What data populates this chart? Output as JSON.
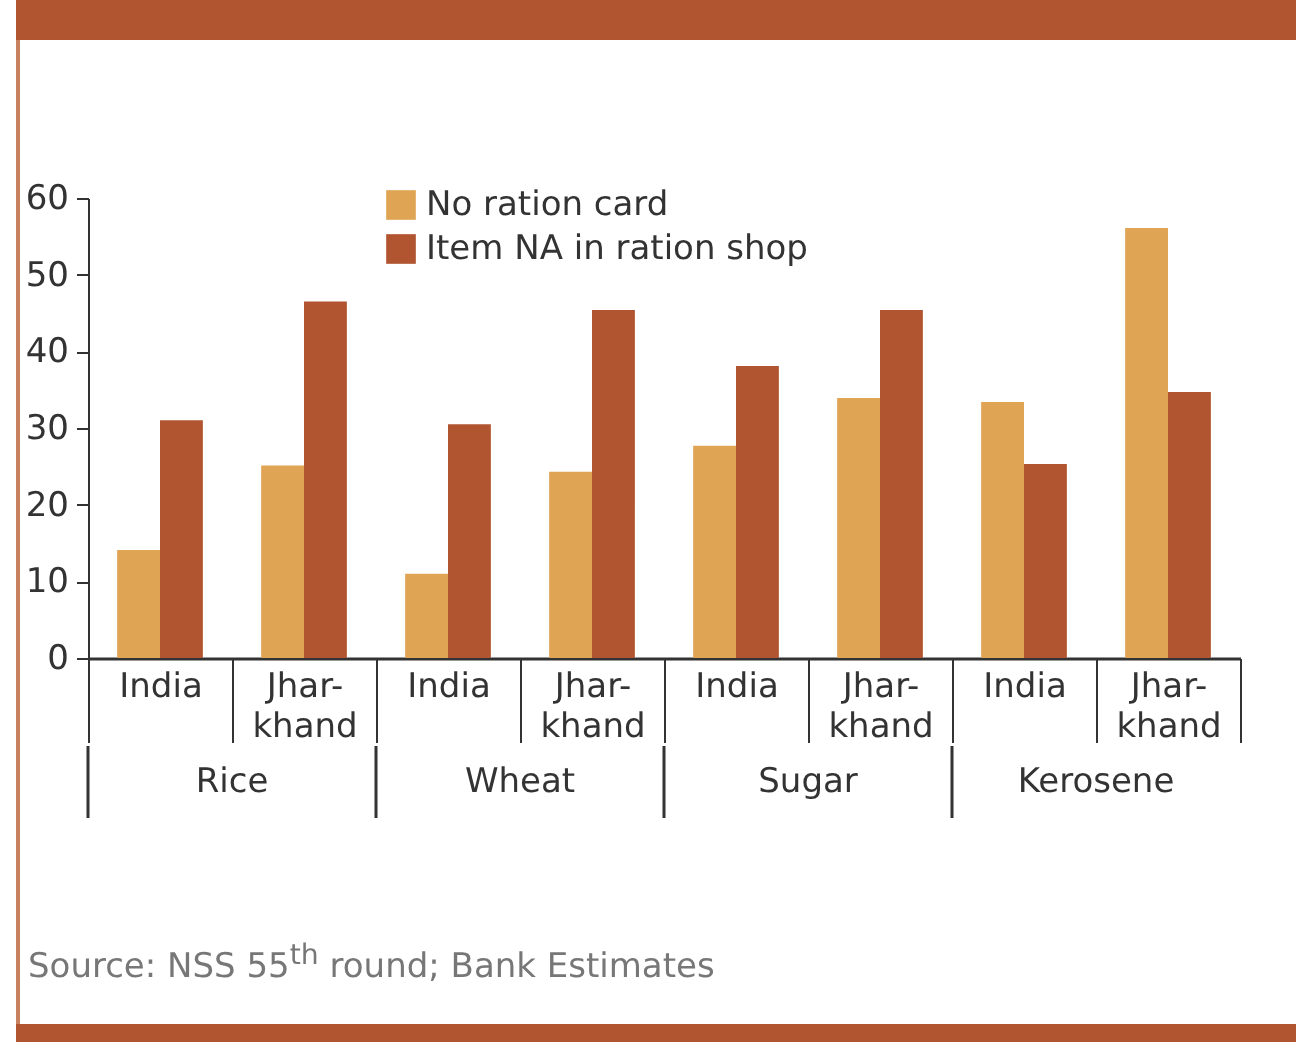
{
  "chart_data": {
    "type": "bar",
    "categories": [
      "India",
      "Jhar-\nkhand",
      "India",
      "Jhar-\nkhand",
      "India",
      "Jhar-\nkhand",
      "India",
      "Jhar-\nkhand"
    ],
    "series": [
      {
        "name": "No ration card",
        "color": "#dfa555",
        "values": [
          14.1,
          25.1,
          11.0,
          24.3,
          27.7,
          33.9,
          33.4,
          56.1
        ]
      },
      {
        "name": "Item NA in ration shop",
        "color": "#b15531",
        "values": [
          31.0,
          46.5,
          30.5,
          45.4,
          38.1,
          45.4,
          25.3,
          34.7
        ]
      }
    ],
    "ylim": [
      0,
      60
    ],
    "yticks": [
      0,
      10,
      20,
      30,
      40,
      50,
      60
    ],
    "grid": false,
    "legend": "top",
    "annotations": [
      "Rice",
      "Wheat",
      "Sugar",
      "Kerosene",
      "Source:  NSS 55$^{th}$ round; Bank Estimates"
    ]
  }
}
